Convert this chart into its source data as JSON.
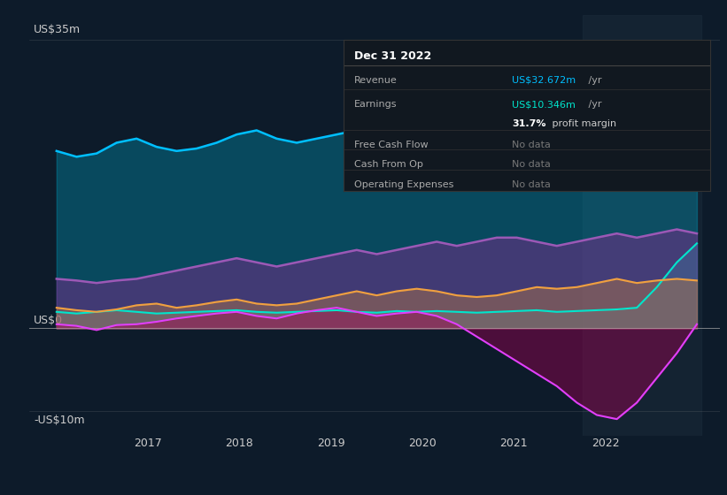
{
  "background_color": "#0d1b2a",
  "plot_bg_color": "#0d1b2a",
  "ylabel_top": "US$35m",
  "ylabel_zero": "US$0",
  "ylabel_bottom": "-US$10m",
  "x_labels": [
    "2017",
    "2018",
    "2019",
    "2020",
    "2021",
    "2022"
  ],
  "legend_items": [
    "Revenue",
    "Earnings",
    "Free Cash Flow",
    "Cash From Op",
    "Operating Expenses"
  ],
  "legend_colors": [
    "#00bfff",
    "#00e5cc",
    "#e040fb",
    "#f0a040",
    "#9b59b6"
  ],
  "tooltip_title": "Dec 31 2022",
  "revenue": [
    21.5,
    20.8,
    21.2,
    22.5,
    23.0,
    22.0,
    21.5,
    21.8,
    22.5,
    23.5,
    24.0,
    23.0,
    22.5,
    23.0,
    23.5,
    24.0,
    23.5,
    23.0,
    22.5,
    23.0,
    23.5,
    24.0,
    24.5,
    24.0,
    23.5,
    23.0,
    23.5,
    24.0,
    24.5,
    25.0,
    26.0,
    28.0,
    32.5
  ],
  "earnings": [
    2.0,
    1.8,
    2.0,
    2.2,
    2.0,
    1.8,
    1.9,
    2.0,
    2.1,
    2.2,
    2.0,
    1.9,
    2.0,
    2.1,
    2.2,
    2.0,
    1.9,
    2.1,
    2.0,
    2.1,
    2.0,
    1.9,
    2.0,
    2.1,
    2.2,
    2.0,
    2.1,
    2.2,
    2.3,
    2.5,
    5.0,
    8.0,
    10.3
  ],
  "free_cash_flow": [
    0.5,
    0.3,
    -0.2,
    0.4,
    0.5,
    0.8,
    1.2,
    1.5,
    1.8,
    2.0,
    1.5,
    1.2,
    1.8,
    2.2,
    2.5,
    2.0,
    1.5,
    1.8,
    2.0,
    1.5,
    0.5,
    -1.0,
    -2.5,
    -4.0,
    -5.5,
    -7.0,
    -9.0,
    -10.5,
    -11.0,
    -9.0,
    -6.0,
    -3.0,
    0.5
  ],
  "cash_from_op": [
    2.5,
    2.2,
    2.0,
    2.3,
    2.8,
    3.0,
    2.5,
    2.8,
    3.2,
    3.5,
    3.0,
    2.8,
    3.0,
    3.5,
    4.0,
    4.5,
    4.0,
    4.5,
    4.8,
    4.5,
    4.0,
    3.8,
    4.0,
    4.5,
    5.0,
    4.8,
    5.0,
    5.5,
    6.0,
    5.5,
    5.8,
    6.0,
    5.8
  ],
  "op_expenses": [
    6.0,
    5.8,
    5.5,
    5.8,
    6.0,
    6.5,
    7.0,
    7.5,
    8.0,
    8.5,
    8.0,
    7.5,
    8.0,
    8.5,
    9.0,
    9.5,
    9.0,
    9.5,
    10.0,
    10.5,
    10.0,
    10.5,
    11.0,
    11.0,
    10.5,
    10.0,
    10.5,
    11.0,
    11.5,
    11.0,
    11.5,
    12.0,
    11.5
  ]
}
